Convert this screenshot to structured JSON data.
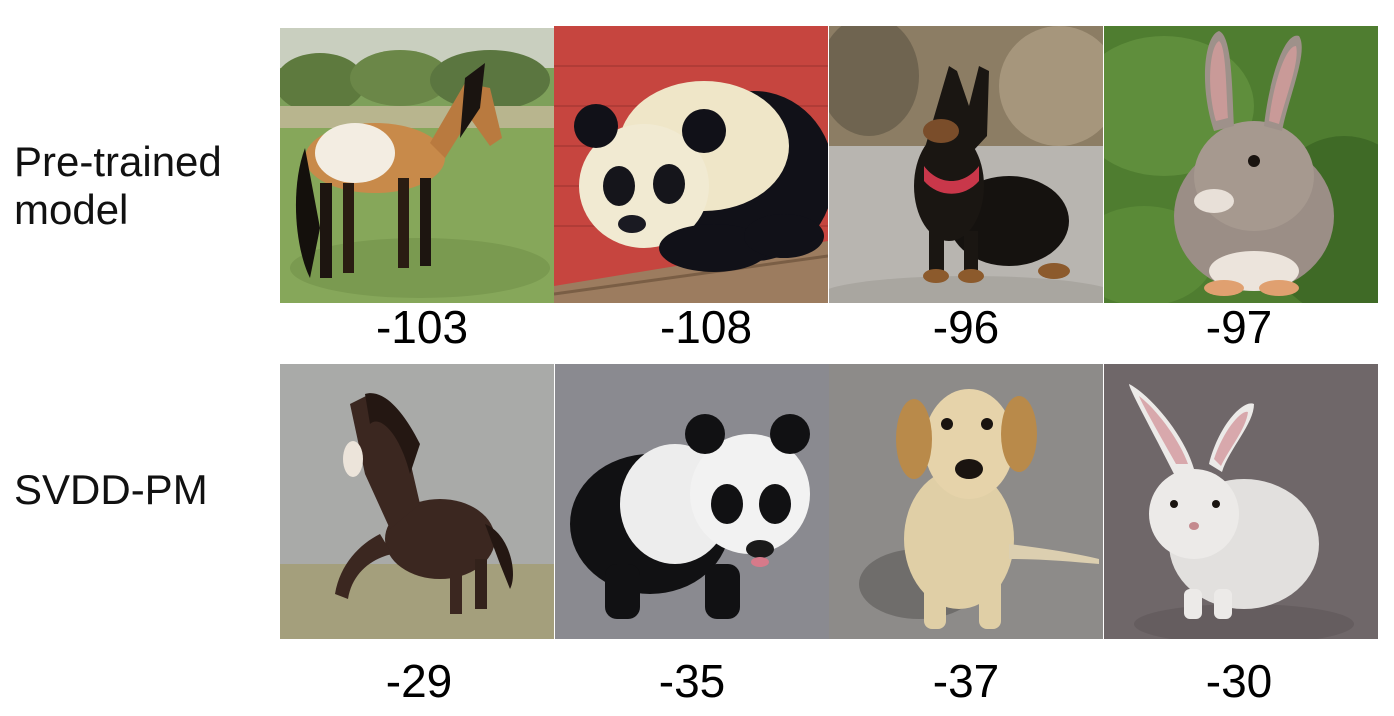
{
  "rows": [
    {
      "label": "Pre-trained\nmodel",
      "images": [
        {
          "subject": "horse",
          "score": "-103"
        },
        {
          "subject": "panda",
          "score": "-108"
        },
        {
          "subject": "dog",
          "score": "-96"
        },
        {
          "subject": "rabbit",
          "score": "-97"
        }
      ]
    },
    {
      "label": "SVDD-PM",
      "images": [
        {
          "subject": "horse",
          "score": "-29"
        },
        {
          "subject": "panda",
          "score": "-35"
        },
        {
          "subject": "dog",
          "score": "-37"
        },
        {
          "subject": "rabbit",
          "score": "-30"
        }
      ]
    }
  ]
}
